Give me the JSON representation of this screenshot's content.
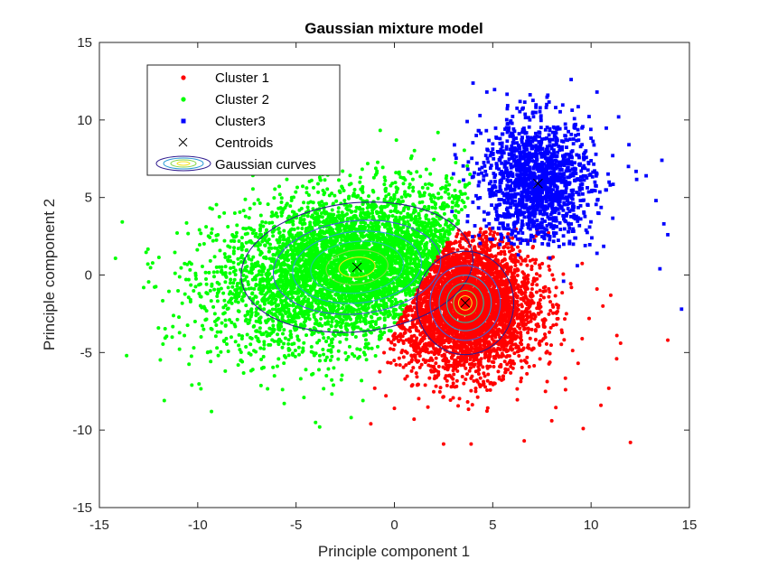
{
  "chart_data": {
    "type": "scatter",
    "title": "Gaussian mixture model",
    "xlabel": "Principle component 1",
    "ylabel": "Principle component 2",
    "xlim": [
      -15,
      15
    ],
    "ylim": [
      -15,
      15
    ],
    "xticks": [
      -15,
      -10,
      -5,
      0,
      5,
      10,
      15
    ],
    "yticks": [
      -15,
      -10,
      -5,
      0,
      5,
      10,
      15
    ],
    "xtick_labels": [
      "-15",
      "-10",
      "-5",
      "0",
      "5",
      "10",
      "15"
    ],
    "ytick_labels": [
      "-15",
      "-10",
      "-5",
      "0",
      "5",
      "10",
      "15"
    ],
    "grid": false,
    "legend_position": "top-left",
    "series": [
      {
        "name": "Cluster 1",
        "color": "#ff0000",
        "marker": "point",
        "approx_center": [
          3.6,
          -1.9
        ],
        "approx_spread": [
          1.8,
          2.2
        ],
        "points": [
          [
            -1.0,
            -7.3
          ],
          [
            -1.2,
            -9.6
          ],
          [
            0.0,
            -8.6
          ],
          [
            1.0,
            -9.3
          ],
          [
            2.5,
            -10.9
          ],
          [
            3.9,
            -10.9
          ],
          [
            6.6,
            -10.7
          ],
          [
            9.6,
            -9.9
          ],
          [
            10.5,
            -8.4
          ],
          [
            10.9,
            -7.3
          ],
          [
            12.0,
            -10.8
          ],
          [
            11.3,
            -5.4
          ],
          [
            11.5,
            -4.4
          ],
          [
            10.6,
            -2.0
          ],
          [
            9.9,
            -2.8
          ],
          [
            11.0,
            -1.3
          ],
          [
            13.9,
            -4.2
          ],
          [
            9.0,
            -0.8
          ],
          [
            10.3,
            -0.9
          ],
          [
            8.0,
            -9.4
          ],
          [
            8.7,
            -7.4
          ]
        ]
      },
      {
        "name": "Cluster 2",
        "color": "#00ff00",
        "marker": "point",
        "approx_center": [
          -2.0,
          0.5
        ],
        "approx_spread": [
          3.5,
          2.4
        ],
        "points": [
          [
            -11.7,
            -8.1
          ],
          [
            -10.3,
            -7.1
          ],
          [
            -10.2,
            -4.7
          ],
          [
            -9.7,
            -3.5
          ],
          [
            -9.3,
            -8.8
          ],
          [
            -8.6,
            -6.2
          ],
          [
            -3.8,
            -9.8
          ],
          [
            -1.6,
            -8.1
          ],
          [
            -2.2,
            -9.2
          ],
          [
            -4.6,
            -7.9
          ],
          [
            -8.1,
            -1.3
          ],
          [
            -8.7,
            -2.5
          ],
          [
            -7.6,
            -0.3
          ],
          [
            -9.0,
            0.2
          ],
          [
            -7.8,
            -5.5
          ],
          [
            -6.1,
            -6.5
          ],
          [
            -3.1,
            -7.1
          ],
          [
            0.1,
            8.7
          ],
          [
            -0.5,
            6.3
          ],
          [
            -9.5,
            -1.2
          ]
        ]
      },
      {
        "name": "Cluster3",
        "color": "#0000ff",
        "marker": "square",
        "approx_center": [
          7.3,
          6.0
        ],
        "approx_spread": [
          1.4,
          2.0
        ],
        "points": [
          [
            4.3,
            9.3
          ],
          [
            3.7,
            9.9
          ],
          [
            4.7,
            11.8
          ],
          [
            6.5,
            10.7
          ],
          [
            7.8,
            11.6
          ],
          [
            8.2,
            10.8
          ],
          [
            10.3,
            11.8
          ],
          [
            11.4,
            10.2
          ],
          [
            11.1,
            7.7
          ],
          [
            11.9,
            7.0
          ],
          [
            12.8,
            6.4
          ],
          [
            13.3,
            4.8
          ],
          [
            13.6,
            7.4
          ],
          [
            13.7,
            3.3
          ],
          [
            13.9,
            2.6
          ],
          [
            14.6,
            -2.2
          ],
          [
            13.5,
            0.4
          ],
          [
            10.3,
            1.4
          ],
          [
            9.3,
            0.6
          ],
          [
            7.9,
            1.1
          ],
          [
            6.3,
            1.3
          ],
          [
            8.6,
            -0.4
          ],
          [
            9.7,
            1.9
          ],
          [
            9.2,
            3.7
          ]
        ]
      }
    ],
    "centroids": {
      "name": "Centroids",
      "marker": "x",
      "color": "#000000",
      "points": [
        [
          -1.9,
          0.5
        ],
        [
          3.6,
          -1.8
        ],
        [
          7.3,
          5.9
        ]
      ]
    },
    "gaussian_curves": {
      "name": "Gaussian curves",
      "colormap": [
        "#2e1a8f",
        "#3f5fd8",
        "#2a9ad6",
        "#21c2a7",
        "#85d644",
        "#f5e31d"
      ],
      "components": [
        {
          "mean": [
            -1.9,
            0.5
          ],
          "sx": 3.3,
          "sy": 2.3,
          "angle_deg": 10,
          "levels": [
            1.8,
            1.3,
            1.0,
            0.72,
            0.48,
            0.28
          ]
        },
        {
          "mean": [
            3.6,
            -1.8
          ],
          "sx": 1.7,
          "sy": 2.3,
          "angle_deg": 0,
          "levels": [
            1.45,
            1.05,
            0.78,
            0.55,
            0.35,
            0.2
          ]
        }
      ]
    }
  }
}
